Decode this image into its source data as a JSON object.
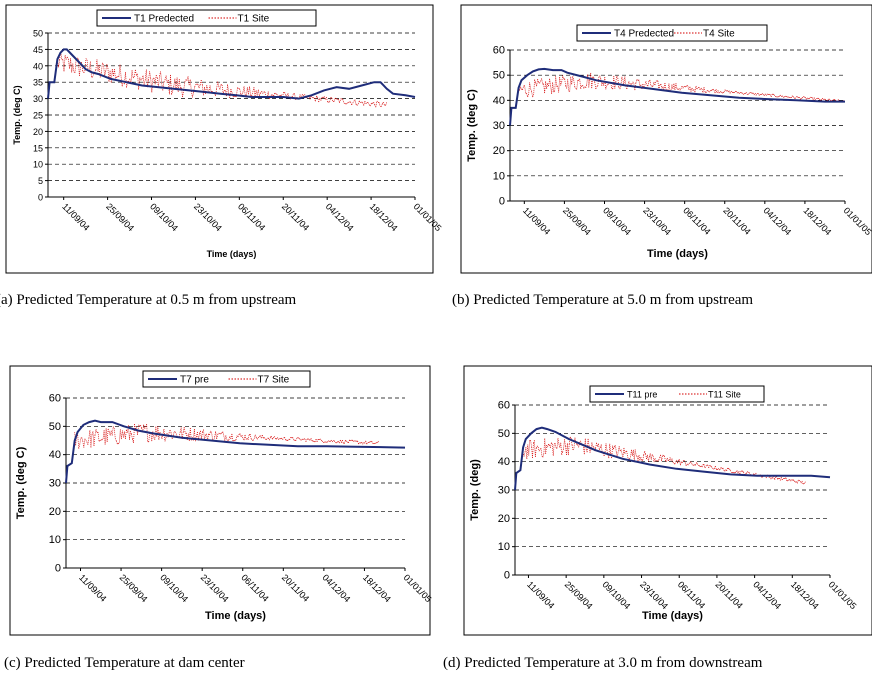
{
  "captions": {
    "a": "(a) Predicted Temperature at 0.5 m from upstream",
    "b": "(b) Predicted Temperature at 5.0 m from upstream",
    "c": "(c) Predicted Temperature at dam center",
    "d": "(d) Predicted Temperature at 3.0 m from downstream"
  },
  "colors": {
    "predicted": "#1f2d7a",
    "site": "#d40000",
    "grid": "#000000",
    "frame": "#000000"
  },
  "chart_data": [
    {
      "id": "a",
      "type": "line",
      "xlabel": "Time (days)",
      "ylabel": "Temp. (deg C)",
      "ylim": [
        0,
        50
      ],
      "ytick_step": 5,
      "x_tick_labels": [
        "11/09/04",
        "25/09/04",
        "09/10/04",
        "23/10/04",
        "06/11/04",
        "20/11/04",
        "04/12/04",
        "18/12/04",
        "01/01/05"
      ],
      "x_tick_days": [
        5,
        19,
        33,
        47,
        61,
        75,
        89,
        103,
        117
      ],
      "xlim_days": [
        0,
        117
      ],
      "grid": "horizontal dashed",
      "legend": "top",
      "series": [
        {
          "name": "T1 Predected",
          "style": "solid",
          "points": [
            [
              0,
              30
            ],
            [
              0.5,
              35
            ],
            [
              2,
              35
            ],
            [
              3,
              42
            ],
            [
              4,
              44
            ],
            [
              5,
              45
            ],
            [
              6,
              45
            ],
            [
              8,
              43
            ],
            [
              10,
              41
            ],
            [
              12,
              39
            ],
            [
              14,
              38
            ],
            [
              16,
              37.5
            ],
            [
              20,
              36
            ],
            [
              25,
              35
            ],
            [
              30,
              34
            ],
            [
              35,
              33.5
            ],
            [
              40,
              33
            ],
            [
              45,
              32.5
            ],
            [
              50,
              32
            ],
            [
              55,
              31.5
            ],
            [
              60,
              31
            ],
            [
              65,
              30.5
            ],
            [
              70,
              30.5
            ],
            [
              75,
              30.5
            ],
            [
              80,
              30
            ],
            [
              84,
              31
            ],
            [
              88,
              32.5
            ],
            [
              92,
              33.5
            ],
            [
              96,
              33
            ],
            [
              100,
              34
            ],
            [
              104,
              35
            ],
            [
              106,
              35
            ],
            [
              108,
              33
            ],
            [
              110,
              31.5
            ],
            [
              114,
              31
            ],
            [
              117,
              30.5
            ]
          ]
        },
        {
          "name": "T1 Site",
          "style": "dotted",
          "scatter": {
            "y_start": 41,
            "y_mid": 34,
            "y_end": 28,
            "x_start": 3,
            "x_mid": 40,
            "x_end": 108,
            "jitter_early": 3.5,
            "jitter_late": 1
          }
        }
      ]
    },
    {
      "id": "b",
      "type": "line",
      "xlabel": "Time (days)",
      "ylabel": "Temp. (deg C)",
      "ylim": [
        0,
        60
      ],
      "ytick_step": 10,
      "x_tick_labels": [
        "11/09/04",
        "25/09/04",
        "09/10/04",
        "23/10/04",
        "06/11/04",
        "20/11/04",
        "04/12/04",
        "18/12/04",
        "01/01/05"
      ],
      "x_tick_days": [
        5,
        19,
        33,
        47,
        61,
        75,
        89,
        103,
        117
      ],
      "xlim_days": [
        0,
        117
      ],
      "grid": "horizontal dashed",
      "legend": "top",
      "series": [
        {
          "name": "T4 Predected",
          "style": "solid",
          "points": [
            [
              0,
              30
            ],
            [
              0.5,
              37
            ],
            [
              2,
              37
            ],
            [
              3,
              45
            ],
            [
              4,
              48
            ],
            [
              6,
              50
            ],
            [
              8,
              51.5
            ],
            [
              10,
              52.3
            ],
            [
              12,
              52.5
            ],
            [
              15,
              52
            ],
            [
              18,
              52
            ],
            [
              20,
              51
            ],
            [
              25,
              49.5
            ],
            [
              30,
              48
            ],
            [
              40,
              46
            ],
            [
              50,
              44.5
            ],
            [
              60,
              43
            ],
            [
              70,
              42
            ],
            [
              80,
              41
            ],
            [
              90,
              40.5
            ],
            [
              100,
              40
            ],
            [
              110,
              39.5
            ],
            [
              117,
              39.5
            ]
          ]
        },
        {
          "name": "T4 Site",
          "style": "dotted",
          "scatter": {
            "y_start": 44,
            "y_mid": 48,
            "y_end": 39.5,
            "x_start": 3,
            "x_mid": 28,
            "x_end": 117,
            "jitter_early": 3.5,
            "jitter_late": 0.6
          }
        }
      ]
    },
    {
      "id": "c",
      "type": "line",
      "xlabel": "Time (days)",
      "ylabel": "Temp. (deg C)",
      "ylim": [
        0,
        60
      ],
      "ytick_step": 10,
      "x_tick_labels": [
        "11/09/04",
        "25/09/04",
        "09/10/04",
        "23/10/04",
        "06/11/04",
        "20/11/04",
        "04/12/04",
        "18/12/04",
        "01/01/05"
      ],
      "x_tick_days": [
        5,
        19,
        33,
        47,
        61,
        75,
        89,
        103,
        117
      ],
      "xlim_days": [
        0,
        117
      ],
      "grid": "horizontal dashed",
      "legend": "top",
      "series": [
        {
          "name": "T7  pre",
          "style": "solid",
          "points": [
            [
              0,
              30
            ],
            [
              0.5,
              36
            ],
            [
              2,
              37
            ],
            [
              3,
              45
            ],
            [
              4,
              48
            ],
            [
              6,
              50.5
            ],
            [
              8,
              51.5
            ],
            [
              10,
              52
            ],
            [
              12,
              51.5
            ],
            [
              16,
              51.5
            ],
            [
              20,
              50
            ],
            [
              25,
              48.5
            ],
            [
              30,
              47.5
            ],
            [
              40,
              46
            ],
            [
              50,
              45
            ],
            [
              60,
              44
            ],
            [
              70,
              43.5
            ],
            [
              80,
              43
            ],
            [
              90,
              43
            ],
            [
              100,
              42.8
            ],
            [
              117,
              42.5
            ]
          ]
        },
        {
          "name": "T7 Site",
          "style": "dotted",
          "scatter": {
            "y_start": 45,
            "y_mid": 48,
            "y_end": 44,
            "x_start": 3,
            "x_mid": 28,
            "x_end": 108,
            "jitter_early": 3.5,
            "jitter_late": 0.7
          }
        }
      ]
    },
    {
      "id": "d",
      "type": "line",
      "xlabel": "Time (days)",
      "ylabel": "Temp. (deg)",
      "ylim": [
        0,
        60
      ],
      "ytick_step": 10,
      "x_tick_labels": [
        "11/09/04",
        "25/09/04",
        "09/10/04",
        "23/10/04",
        "06/11/04",
        "20/11/04",
        "04/12/04",
        "18/12/04",
        "01/01/05"
      ],
      "x_tick_days": [
        5,
        19,
        33,
        47,
        61,
        75,
        89,
        103,
        117
      ],
      "xlim_days": [
        0,
        117
      ],
      "grid": "horizontal dashed",
      "legend": "top",
      "series": [
        {
          "name": "T11  pre",
          "style": "solid",
          "points": [
            [
              0,
              30
            ],
            [
              0.5,
              36
            ],
            [
              2,
              37
            ],
            [
              3,
              45
            ],
            [
              4,
              48
            ],
            [
              6,
              50
            ],
            [
              8,
              51.5
            ],
            [
              10,
              52
            ],
            [
              12,
              51.5
            ],
            [
              15,
              50.5
            ],
            [
              20,
              48
            ],
            [
              25,
              46
            ],
            [
              30,
              44
            ],
            [
              40,
              41
            ],
            [
              50,
              39
            ],
            [
              60,
              37.5
            ],
            [
              70,
              36.5
            ],
            [
              80,
              35.5
            ],
            [
              90,
              35
            ],
            [
              100,
              35
            ],
            [
              110,
              35
            ],
            [
              117,
              34.5
            ]
          ]
        },
        {
          "name": "T11 Site",
          "style": "dotted",
          "scatter": {
            "y_start": 44,
            "y_mid": 46,
            "y_end": 32.5,
            "x_start": 3,
            "x_mid": 22,
            "x_end": 108,
            "jitter_early": 3.5,
            "jitter_late": 0.7
          }
        }
      ]
    }
  ]
}
